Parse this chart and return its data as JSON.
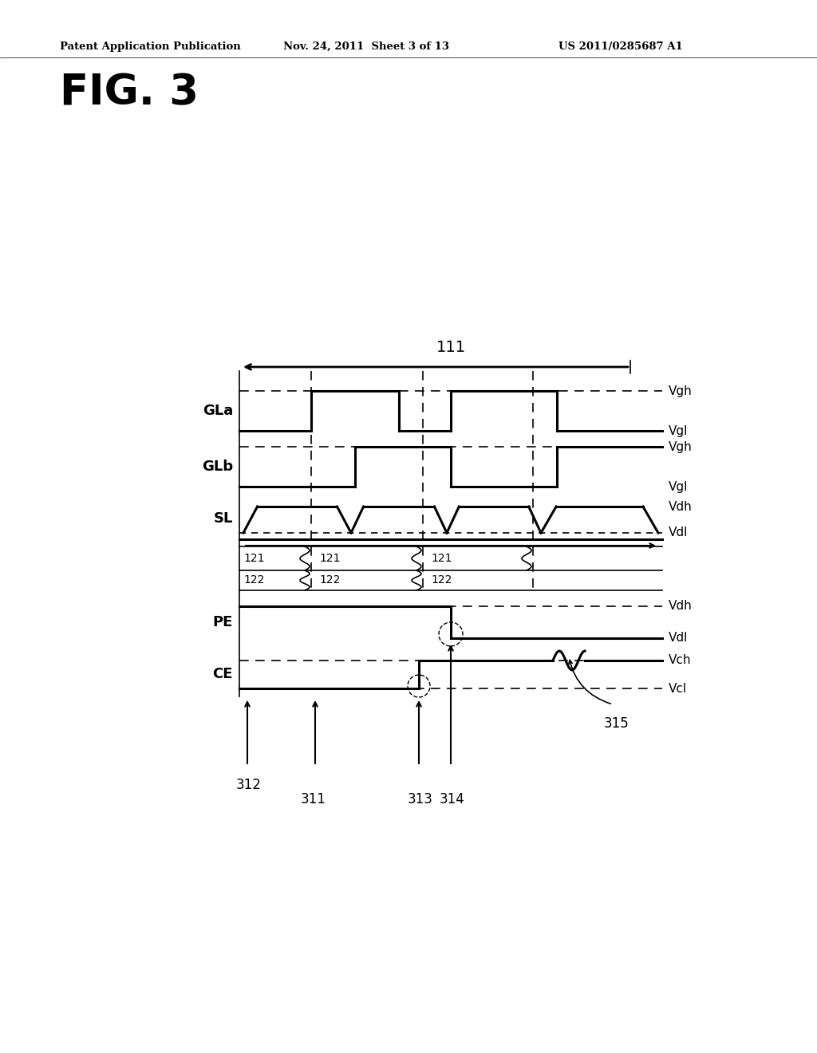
{
  "bg_color": "#ffffff",
  "header_left": "Patent Application Publication",
  "header_mid": "Nov. 24, 2011  Sheet 3 of 13",
  "header_right": "US 2011/0285687 A1",
  "fig_label": "FIG. 3",
  "text_color": "#000000"
}
